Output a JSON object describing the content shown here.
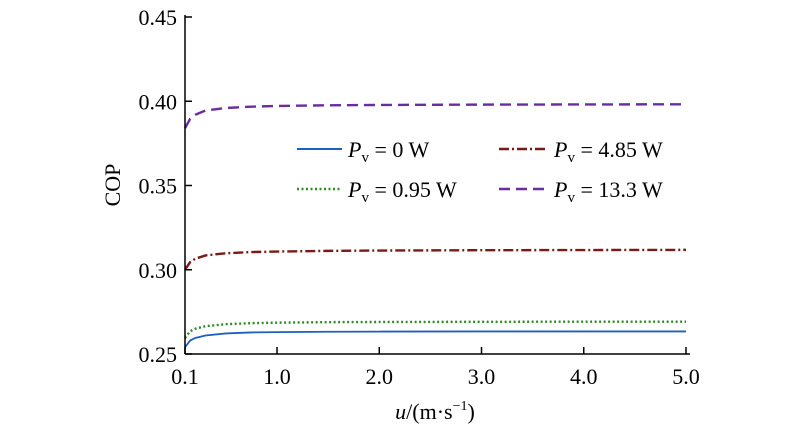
{
  "chart_data": {
    "type": "line",
    "xlabel_var": "u",
    "xlabel_unit": "/(m·s",
    "xlabel_exp": "−1",
    "xlabel_close": ")",
    "ylabel": "COP",
    "xlim": [
      0.1,
      5.0
    ],
    "ylim": [
      0.25,
      0.45
    ],
    "x_ticks": [
      0.1,
      1.0,
      2.0,
      3.0,
      4.0,
      5.0
    ],
    "x_tick_labels": [
      "0.1",
      "1.0",
      "2.0",
      "3.0",
      "4.0",
      "5.0"
    ],
    "y_ticks": [
      0.25,
      0.3,
      0.35,
      0.4,
      0.45
    ],
    "y_tick_labels": [
      "0.25",
      "0.30",
      "0.35",
      "0.40",
      "0.45"
    ],
    "x": [
      0.1,
      0.15,
      0.2,
      0.3,
      0.5,
      0.75,
      1.0,
      1.5,
      2.0,
      3.0,
      4.0,
      5.0
    ],
    "series": [
      {
        "name_var": "P",
        "name_sub": "v",
        "name_value": " = 0 W",
        "color": "#1f5fbf",
        "dash": "none",
        "values": [
          0.254,
          0.258,
          0.2595,
          0.261,
          0.2622,
          0.2628,
          0.263,
          0.2632,
          0.2633,
          0.2634,
          0.2634,
          0.2634
        ]
      },
      {
        "name_var": "P",
        "name_sub": "v",
        "name_value": " = 0.95 W",
        "color": "#2e8b22",
        "dash": "2,2.5",
        "values": [
          0.2595,
          0.2635,
          0.265,
          0.2665,
          0.2677,
          0.2683,
          0.2686,
          0.2689,
          0.269,
          0.2691,
          0.2692,
          0.2692
        ]
      },
      {
        "name_var": "P",
        "name_sub": "v",
        "name_value": " = 4.85 W",
        "color": "#7a1a14",
        "dash": "10,3,2,3",
        "values": [
          0.3,
          0.3045,
          0.3065,
          0.3085,
          0.3098,
          0.3105,
          0.3108,
          0.3112,
          0.3114,
          0.3116,
          0.3117,
          0.3118
        ]
      },
      {
        "name_var": "P",
        "name_sub": "v",
        "name_value": " = 13.3 W",
        "color": "#6a2d9f",
        "dash": "11,6",
        "values": [
          0.384,
          0.3895,
          0.392,
          0.3945,
          0.396,
          0.3968,
          0.3972,
          0.3976,
          0.3978,
          0.398,
          0.3981,
          0.3982
        ]
      }
    ]
  }
}
